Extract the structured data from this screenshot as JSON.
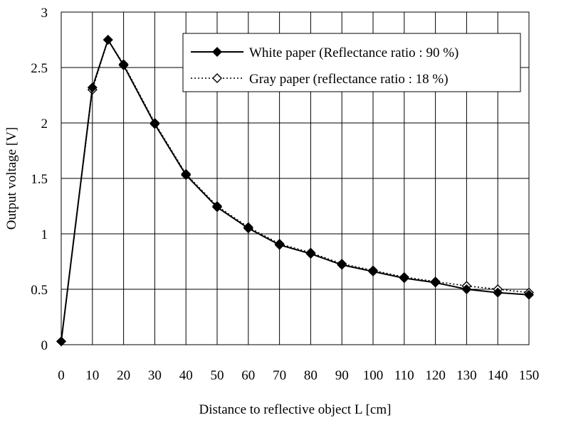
{
  "chart_data": {
    "type": "line",
    "xlabel": "Distance to reflective object L [cm]",
    "ylabel": "Output voltage [V]",
    "xlim": [
      0,
      150
    ],
    "ylim": [
      0,
      3
    ],
    "x_ticks": [
      0,
      10,
      20,
      30,
      40,
      50,
      60,
      70,
      80,
      90,
      100,
      110,
      120,
      130,
      140,
      150
    ],
    "y_ticks": [
      0,
      0.5,
      1,
      1.5,
      2,
      2.5,
      3
    ],
    "grid": true,
    "legend_position": "top-right",
    "series": [
      {
        "name": "White paper (Reflectance ratio : 90 %)",
        "marker": "filled-diamond",
        "line_style": "solid",
        "color": "#000000",
        "points": [
          [
            0,
            0.03
          ],
          [
            10,
            2.32
          ],
          [
            15,
            2.75
          ],
          [
            20,
            2.52
          ],
          [
            30,
            1.99
          ],
          [
            40,
            1.53
          ],
          [
            50,
            1.24
          ],
          [
            60,
            1.05
          ],
          [
            70,
            0.9
          ],
          [
            80,
            0.82
          ],
          [
            90,
            0.72
          ],
          [
            100,
            0.66
          ],
          [
            110,
            0.6
          ],
          [
            120,
            0.56
          ],
          [
            130,
            0.5
          ],
          [
            140,
            0.47
          ],
          [
            150,
            0.45
          ]
        ]
      },
      {
        "name": "Gray paper (reflectance ratio : 18 %)",
        "marker": "hollow-diamond",
        "line_style": "dotted",
        "color": "#000000",
        "points": [
          [
            0,
            0.03
          ],
          [
            10,
            2.3
          ],
          [
            15,
            2.75
          ],
          [
            20,
            2.53
          ],
          [
            30,
            2.0
          ],
          [
            40,
            1.54
          ],
          [
            50,
            1.25
          ],
          [
            60,
            1.06
          ],
          [
            70,
            0.91
          ],
          [
            80,
            0.83
          ],
          [
            90,
            0.73
          ],
          [
            100,
            0.67
          ],
          [
            110,
            0.61
          ],
          [
            120,
            0.57
          ],
          [
            130,
            0.53
          ],
          [
            140,
            0.5
          ],
          [
            150,
            0.47
          ]
        ]
      }
    ]
  }
}
